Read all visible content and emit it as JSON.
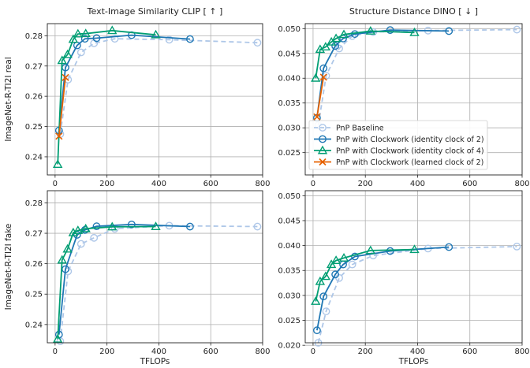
{
  "chart_data": {
    "type": "line",
    "col_titles": [
      "Text-Image Similarity CLIP [ ↑ ]",
      "Structure Distance DINO [ ↓ ]"
    ],
    "row_labels": [
      "ImageNet-R-TI2I real",
      "ImageNet-R-TI2I fake"
    ],
    "xlabel": "TFLOPs",
    "xlim": [
      -30,
      800
    ],
    "xticks": [
      0,
      200,
      400,
      600,
      800
    ],
    "series_styles": [
      {
        "key": "baseline",
        "name": "PnP Baseline",
        "color": "#aec7e8",
        "marker": "circle",
        "dashed": true
      },
      {
        "key": "id2",
        "name": "PnP with Clockwork (identity clock of 2)",
        "color": "#1f77b4",
        "marker": "circle",
        "dashed": false
      },
      {
        "key": "id4",
        "name": "PnP with Clockwork (identity clock of 4)",
        "color": "#009e73",
        "marker": "triangle",
        "dashed": false
      },
      {
        "key": "learned2",
        "name": "PnP with Clockwork (learned clock of 2)",
        "color": "#e66100",
        "marker": "x",
        "dashed": false
      }
    ],
    "panels": [
      {
        "id": "clip-real",
        "ylim": [
          0.234,
          0.284
        ],
        "yticks": [
          0.24,
          0.25,
          0.26,
          0.27,
          0.28
        ],
        "yticklabels": [
          "0.24",
          "0.25",
          "0.26",
          "0.27",
          "0.28"
        ],
        "series": {
          "baseline": {
            "x": [
              20,
              50,
              100,
              150,
              230,
              440,
              780
            ],
            "y": [
              0.2475,
              0.2655,
              0.2745,
              0.2775,
              0.279,
              0.2787,
              0.2777
            ]
          },
          "id2": {
            "x": [
              15,
              40,
              85,
              115,
              160,
              295,
              520
            ],
            "y": [
              0.2487,
              0.2695,
              0.2768,
              0.279,
              0.2792,
              0.2802,
              0.2789
            ]
          },
          "id4": {
            "x": [
              10,
              27,
              48,
              70,
              88,
              118,
              220,
              388
            ],
            "y": [
              0.2375,
              0.2718,
              0.2738,
              0.2788,
              0.2806,
              0.2807,
              0.2817,
              0.2803
            ]
          },
          "learned2": {
            "x": [
              15,
              40
            ],
            "y": [
              0.2468,
              0.2662
            ]
          }
        }
      },
      {
        "id": "dino-real",
        "ylim": [
          0.0205,
          0.051
        ],
        "yticks": [
          0.025,
          0.03,
          0.035,
          0.04,
          0.045,
          0.05
        ],
        "yticklabels": [
          "0.025",
          "0.030",
          "0.035",
          "0.040",
          "0.045",
          "0.050"
        ],
        "series": {
          "baseline": {
            "x": [
              20,
              50,
              100,
              150,
              230,
              440,
              780
            ],
            "y": [
              0.0305,
              0.0405,
              0.046,
              0.0485,
              0.0493,
              0.0496,
              0.0498
            ]
          },
          "id2": {
            "x": [
              15,
              40,
              85,
              115,
              160,
              295,
              520
            ],
            "y": [
              0.032,
              0.042,
              0.0465,
              0.048,
              0.0489,
              0.0497,
              0.0495
            ]
          },
          "id4": {
            "x": [
              10,
              27,
              48,
              70,
              88,
              118,
              220,
              388
            ],
            "y": [
              0.04,
              0.0458,
              0.0463,
              0.0473,
              0.048,
              0.0488,
              0.0495,
              0.0492
            ]
          },
          "learned2": {
            "x": [
              15,
              40
            ],
            "y": [
              0.0322,
              0.0402
            ]
          }
        }
      },
      {
        "id": "clip-fake",
        "ylim": [
          0.234,
          0.284
        ],
        "yticks": [
          0.24,
          0.25,
          0.26,
          0.27,
          0.28
        ],
        "yticklabels": [
          "0.24",
          "0.25",
          "0.26",
          "0.27",
          "0.28"
        ],
        "series": {
          "baseline": {
            "x": [
              20,
              50,
              100,
              150,
              230,
              440,
              780
            ],
            "y": [
              0.2345,
              0.2575,
              0.2665,
              0.2685,
              0.2715,
              0.2725,
              0.2722
            ]
          },
          "id2": {
            "x": [
              15,
              40,
              85,
              115,
              160,
              295,
              520
            ],
            "y": [
              0.2367,
              0.2582,
              0.2695,
              0.2711,
              0.2723,
              0.2729,
              0.2722
            ]
          },
          "id4": {
            "x": [
              10,
              27,
              48,
              70,
              88,
              118,
              220,
              388
            ],
            "y": [
              0.2352,
              0.2612,
              0.2648,
              0.2702,
              0.2709,
              0.2715,
              0.2721,
              0.2722
            ]
          },
          "learned2": {
            "x": [],
            "y": []
          }
        }
      },
      {
        "id": "dino-fake",
        "ylim": [
          0.0205,
          0.051
        ],
        "yticks": [
          0.02,
          0.025,
          0.03,
          0.035,
          0.04,
          0.045,
          0.05
        ],
        "yticklabels": [
          "0.020",
          "0.025",
          "0.030",
          "0.035",
          "0.040",
          "0.045",
          "0.050"
        ],
        "series": {
          "baseline": {
            "x": [
              20,
              50,
              100,
              150,
              230,
              440,
              780
            ],
            "y": [
              0.0205,
              0.0268,
              0.0335,
              0.0362,
              0.038,
              0.0394,
              0.0398
            ]
          },
          "id2": {
            "x": [
              15,
              40,
              85,
              115,
              160,
              295,
              520
            ],
            "y": [
              0.023,
              0.0298,
              0.0342,
              0.0362,
              0.0378,
              0.0389,
              0.0397
            ]
          },
          "id4": {
            "x": [
              10,
              27,
              48,
              70,
              88,
              118,
              220,
              388
            ],
            "y": [
              0.0288,
              0.0328,
              0.0338,
              0.0362,
              0.037,
              0.0375,
              0.039,
              0.0392
            ]
          },
          "learned2": {
            "x": [],
            "y": []
          }
        }
      }
    ]
  }
}
